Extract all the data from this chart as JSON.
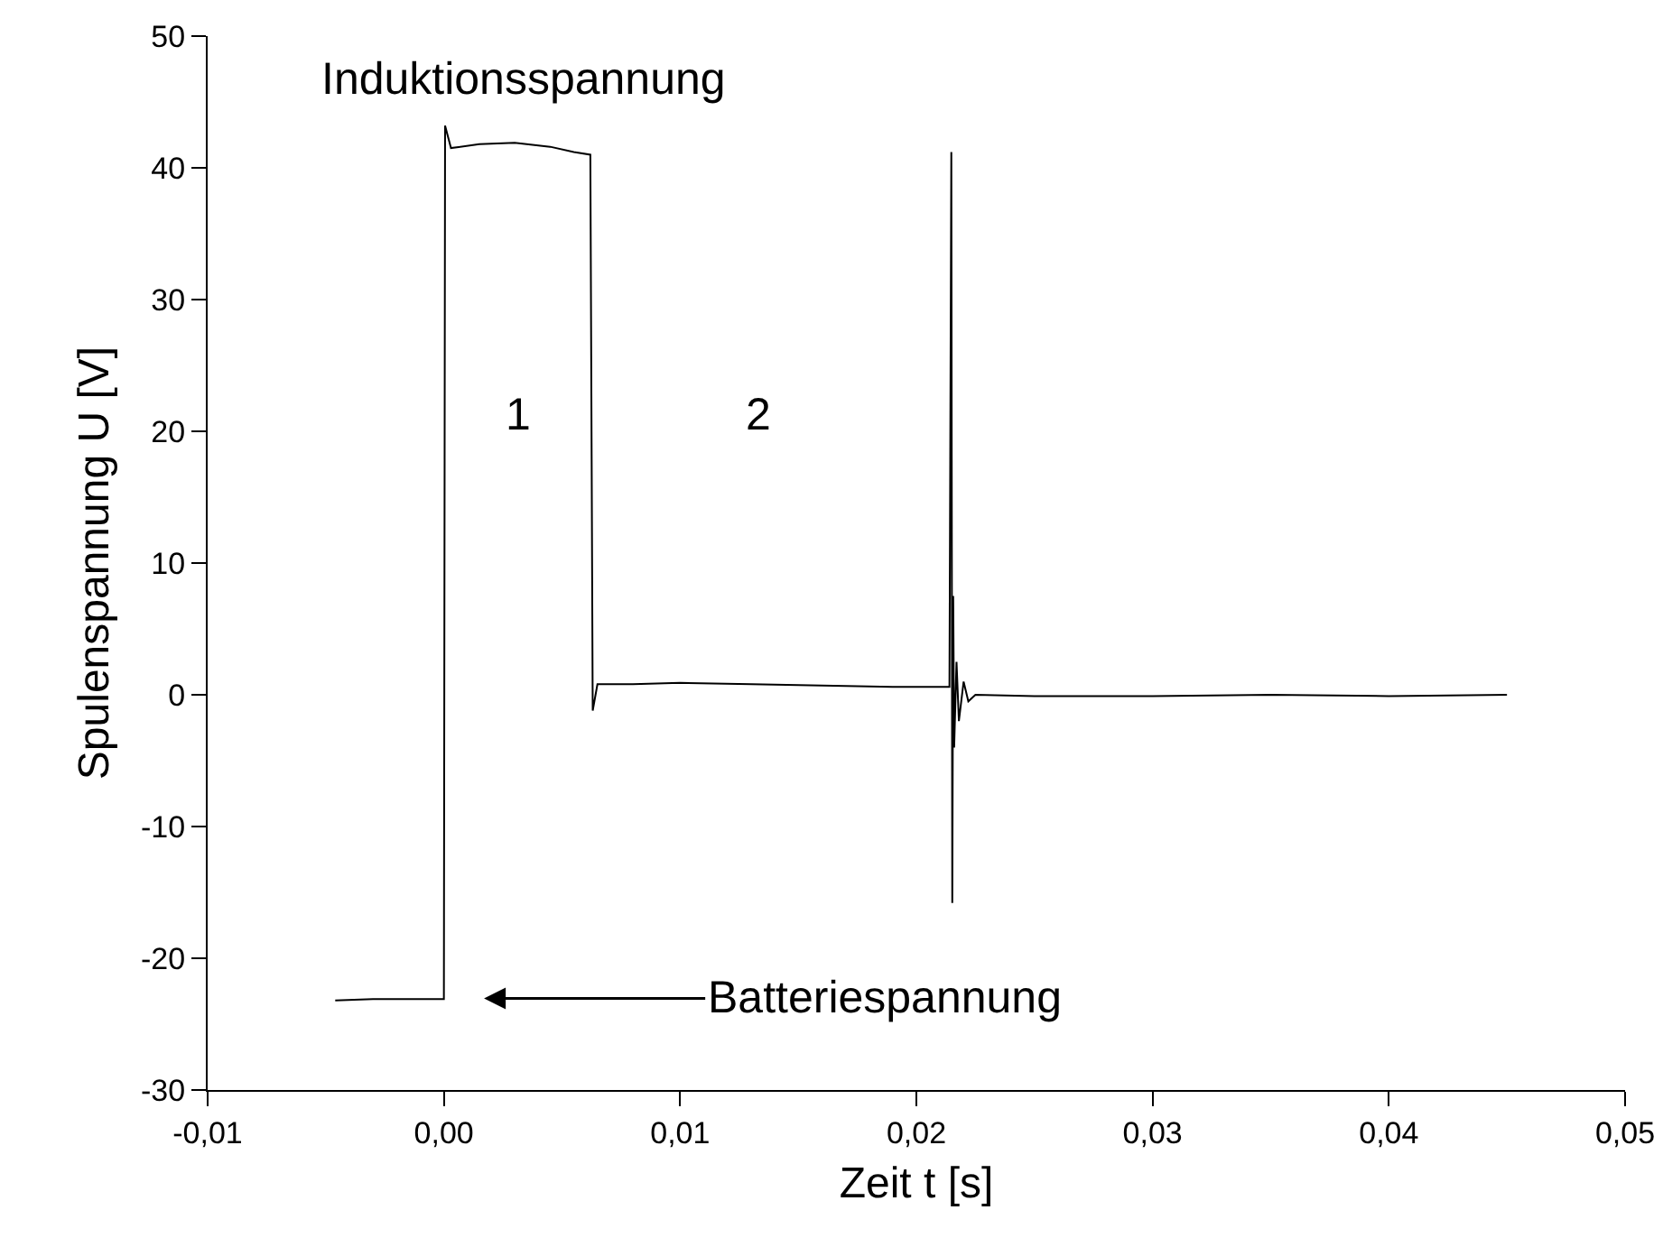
{
  "chart_data": {
    "type": "line",
    "xlabel": "Zeit t [s]",
    "ylabel": "Spulenspannung U [V]",
    "series": [
      {
        "color": "#000000",
        "x": [
          -0.0046,
          -0.003,
          -0.0015,
          0.0,
          5e-05,
          0.0003,
          0.0015,
          0.003,
          0.0045,
          0.0055,
          0.0062,
          0.0063,
          0.0065,
          0.008,
          0.01,
          0.013,
          0.016,
          0.019,
          0.0212,
          0.0214,
          0.02148,
          0.02152,
          0.02156,
          0.0216,
          0.0217,
          0.0218,
          0.022,
          0.0222,
          0.0225,
          0.025,
          0.03,
          0.035,
          0.04,
          0.045
        ],
        "values": [
          -23.2,
          -23.1,
          -23.1,
          -23.1,
          43.2,
          41.5,
          41.8,
          41.9,
          41.6,
          41.2,
          41.0,
          -1.2,
          0.8,
          0.8,
          0.9,
          0.8,
          0.7,
          0.6,
          0.6,
          0.6,
          41.2,
          -15.8,
          7.5,
          -4.0,
          2.5,
          -2.0,
          1.0,
          -0.5,
          0.0,
          -0.1,
          -0.1,
          0.0,
          -0.1,
          0.0
        ]
      }
    ],
    "xlim": [
      -0.01,
      0.05
    ],
    "xticks": [
      {
        "value": -0.01,
        "label": "-0,01"
      },
      {
        "value": 0,
        "label": "0,00"
      },
      {
        "value": 0.01,
        "label": "0,01"
      },
      {
        "value": 0.02,
        "label": "0,02"
      },
      {
        "value": 0.03,
        "label": "0,03"
      },
      {
        "value": 0.04,
        "label": "0,04"
      },
      {
        "value": 0.05,
        "label": "0,05"
      }
    ],
    "ylim": [
      -30,
      50
    ],
    "yticks": [
      -30,
      -20,
      -10,
      0,
      10,
      20,
      30,
      40,
      50
    ],
    "grid": false,
    "marker": "none",
    "line_style": "solid",
    "annotations": [
      "Induktionsspannung",
      "1",
      "2",
      "Batteriespannung"
    ]
  }
}
